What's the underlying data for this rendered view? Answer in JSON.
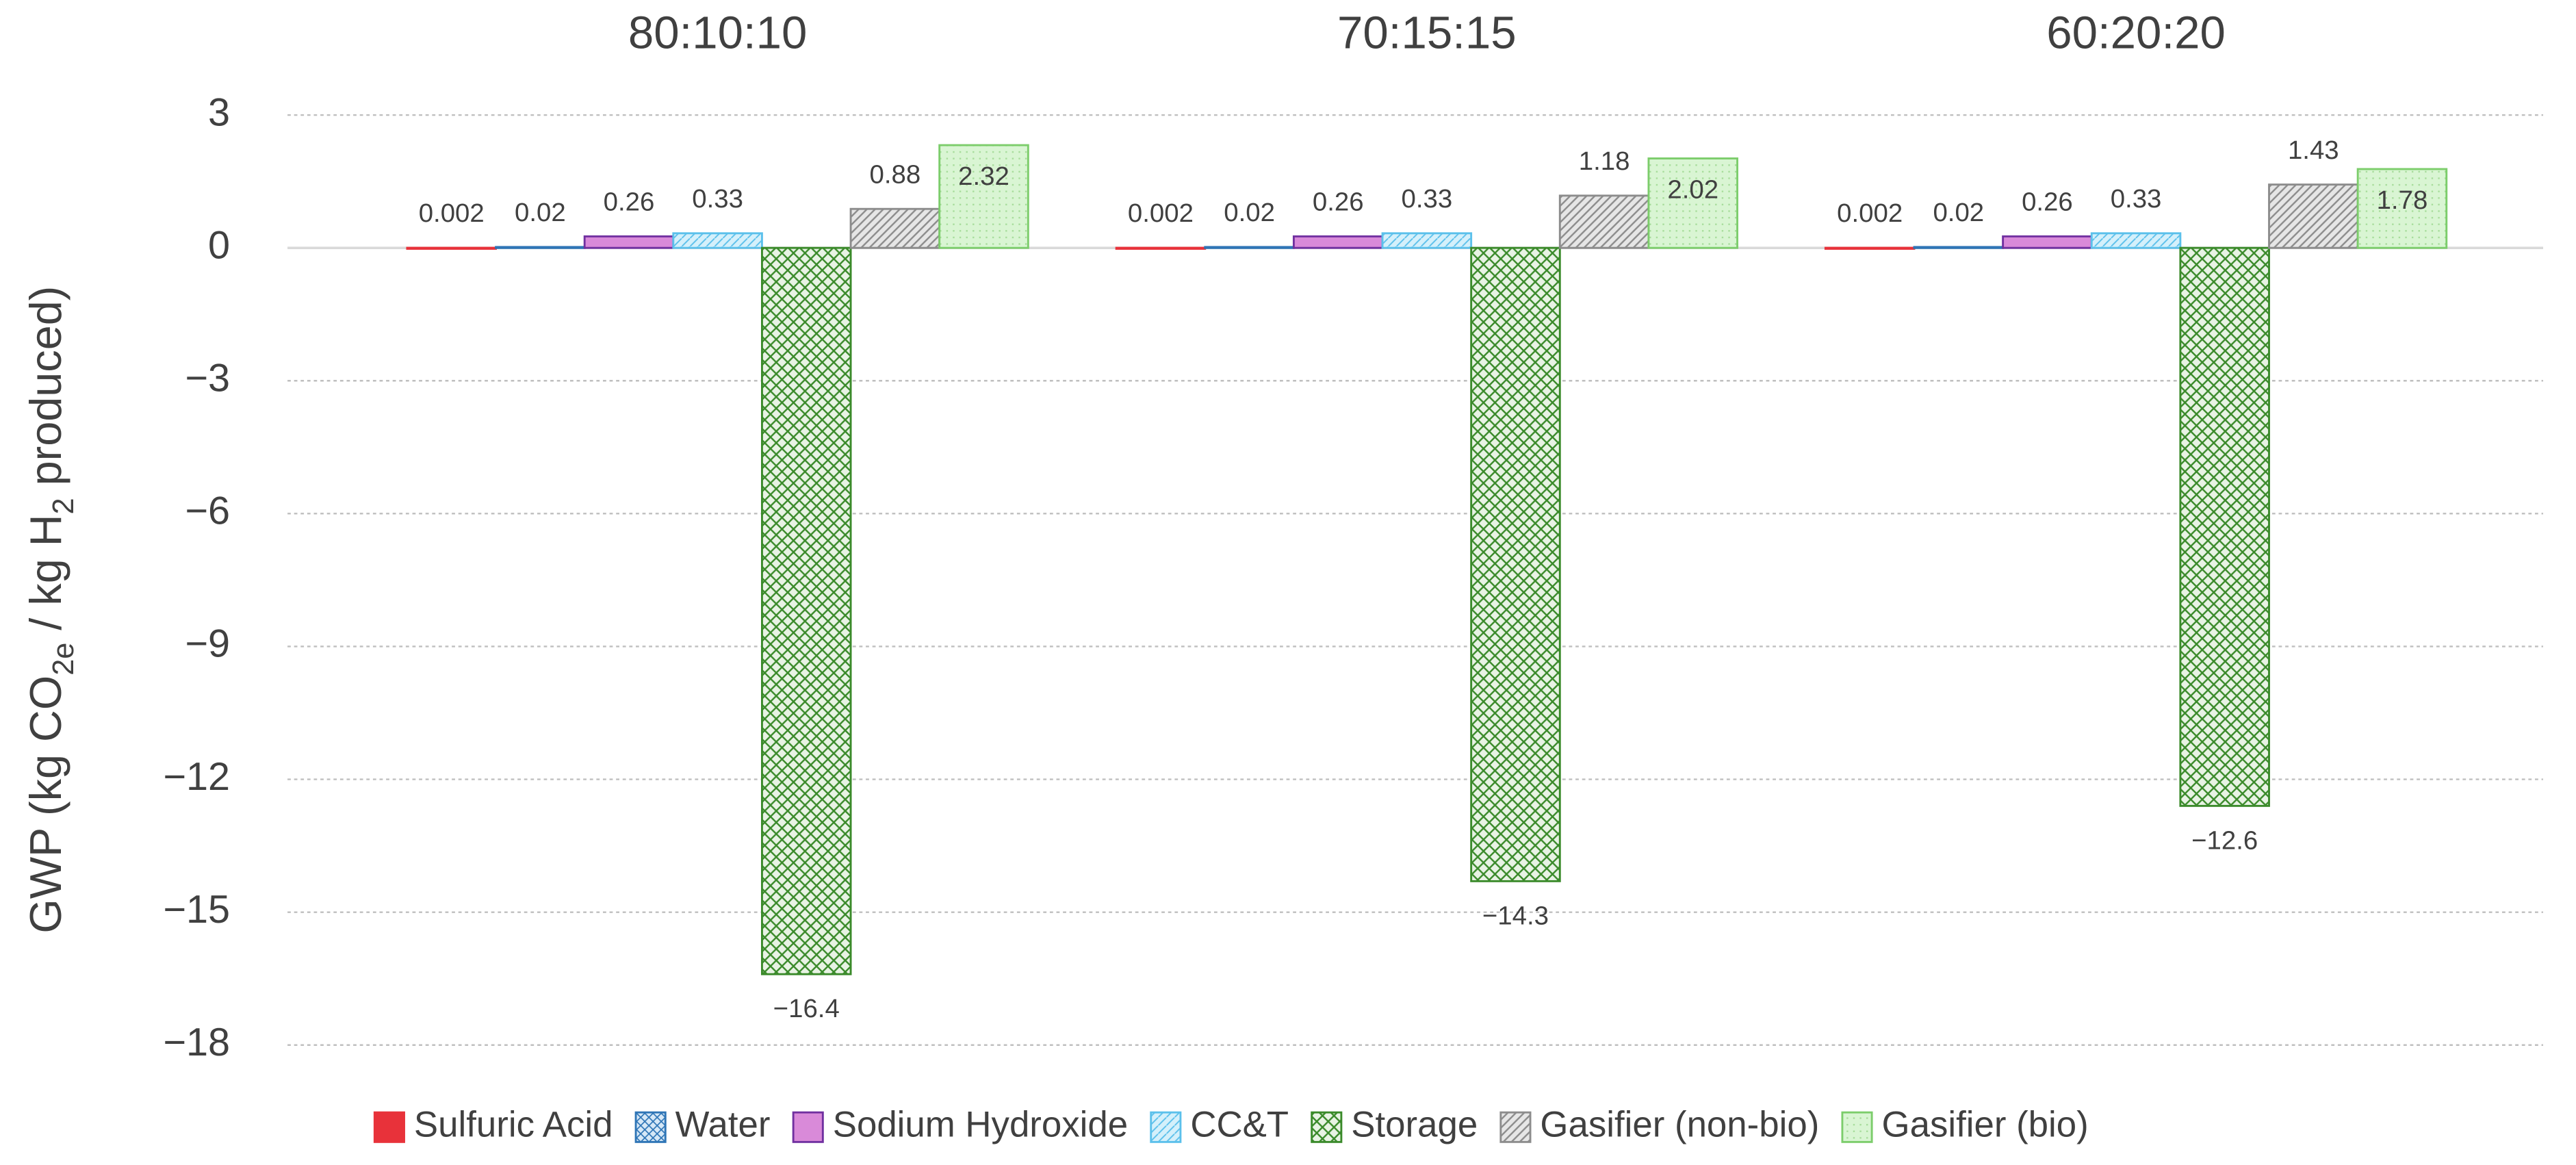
{
  "chart_data": {
    "type": "bar",
    "y_label": [
      "GWP (kg CO",
      "2e",
      " / kg H",
      "2",
      " produced)"
    ],
    "categories": [
      "80:10:10",
      "70:15:15",
      "60:20:20"
    ],
    "ylim": [
      -18,
      3
    ],
    "yticks": [
      {
        "value": -18,
        "label": "−18"
      },
      {
        "value": -15,
        "label": "−15"
      },
      {
        "value": -12,
        "label": "−12"
      },
      {
        "value": -9,
        "label": "−9"
      },
      {
        "value": -6,
        "label": "−6"
      },
      {
        "value": -3,
        "label": "−3"
      },
      0,
      3
    ],
    "grid": true,
    "legend": "bottom",
    "series": [
      {
        "name": "Sulfuric Acid",
        "color": "#e8323a",
        "values": [
          0.002,
          0.002,
          0.002
        ]
      },
      {
        "name": "Water",
        "color": "#2e75b6",
        "values": [
          0.02,
          0.02,
          0.02
        ]
      },
      {
        "name": "Sodium Hydroxide",
        "color": "#7030a0",
        "values": [
          0.26,
          0.26,
          0.26
        ]
      },
      {
        "name": "CC&T",
        "color": "#5bc0eb",
        "values": [
          0.33,
          0.33,
          0.33
        ]
      },
      {
        "name": "Storage",
        "color": "#3a8a2a",
        "values": [
          -16.4,
          -14.3,
          -12.6
        ],
        "value_labels": [
          "−16.4",
          "−14.3",
          "−12.6"
        ]
      },
      {
        "name": "Gasifier (non-bio)",
        "color": "#8c8c8c",
        "values": [
          0.88,
          1.18,
          1.43
        ]
      },
      {
        "name": "Gasifier (bio)",
        "color": "#7ccd6b",
        "values": [
          2.32,
          2.02,
          1.78
        ]
      }
    ]
  }
}
